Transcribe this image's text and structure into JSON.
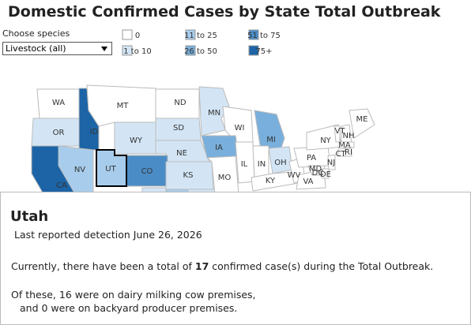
{
  "title": "Domestic Confirmed Cases by State Total Outbreak",
  "filter": {
    "label": "Choose species",
    "selected": "Livestock (all)"
  },
  "legend": [
    {
      "label": "0",
      "color": "#ffffff"
    },
    {
      "label": "1 to 10",
      "color": "#d3e5f5"
    },
    {
      "label": "11 to 25",
      "color": "#a8cdec"
    },
    {
      "label": "26 to 50",
      "color": "#79afdc"
    },
    {
      "label": "51 to 75",
      "color": "#4a8cc6"
    },
    {
      "label": "75+",
      "color": "#1c64a6"
    }
  ],
  "map": {
    "states": [
      {
        "label": "WA",
        "color": "#ffffff"
      },
      {
        "label": "OR",
        "color": "#d3e5f5"
      },
      {
        "label": "ID",
        "color": "#1c64a6"
      },
      {
        "label": "MT",
        "color": "#ffffff"
      },
      {
        "label": "ND",
        "color": "#ffffff"
      },
      {
        "label": "SD",
        "color": "#d3e5f5"
      },
      {
        "label": "WY",
        "color": "#d3e5f5"
      },
      {
        "label": "NE",
        "color": "#d3e5f5"
      },
      {
        "label": "MN",
        "color": "#d3e5f5"
      },
      {
        "label": "WI",
        "color": "#ffffff"
      },
      {
        "label": "MI",
        "color": "#79afdc"
      },
      {
        "label": "IA",
        "color": "#79afdc"
      },
      {
        "label": "NV",
        "color": "#a8cdec"
      },
      {
        "label": "CA",
        "color": "#1c64a6"
      },
      {
        "label": "CO",
        "color": "#4a8cc6"
      },
      {
        "label": "KS",
        "color": "#d3e5f5"
      },
      {
        "label": "MO",
        "color": "#ffffff"
      },
      {
        "label": "IL",
        "color": "#ffffff"
      },
      {
        "label": "IN",
        "color": "#ffffff"
      },
      {
        "label": "OH",
        "color": "#d3e5f5"
      },
      {
        "label": "KY",
        "color": "#ffffff"
      },
      {
        "label": "WV",
        "color": "#ffffff"
      },
      {
        "label": "VA",
        "color": "#ffffff"
      },
      {
        "label": "PA",
        "color": "#ffffff"
      },
      {
        "label": "NY",
        "color": "#ffffff"
      },
      {
        "label": "VT",
        "color": "#ffffff"
      },
      {
        "label": "NH",
        "color": "#ffffff"
      },
      {
        "label": "ME",
        "color": "#ffffff"
      },
      {
        "label": "MA",
        "color": "#ffffff"
      },
      {
        "label": "CT",
        "color": "#ffffff"
      },
      {
        "label": "RI",
        "color": "#ffffff"
      },
      {
        "label": "NJ",
        "color": "#ffffff"
      },
      {
        "label": "MD",
        "color": "#ffffff"
      },
      {
        "label": "DE",
        "color": "#ffffff"
      },
      {
        "label": "DC",
        "color": "#ffffff"
      },
      {
        "label": "UT",
        "color": "#a8cdec"
      }
    ]
  },
  "tooltip": {
    "state": "Utah",
    "last_reported": "Last reported detection June 26, 2026",
    "total": {
      "before": "Currently, there have been a total of",
      "count": "17",
      "after": "confirmed case(s) during the Total Outbreak."
    },
    "dairy": "Of these, 16 were on dairy milking cow premises,",
    "backyard": "and 0 were on backyard producer premises."
  }
}
